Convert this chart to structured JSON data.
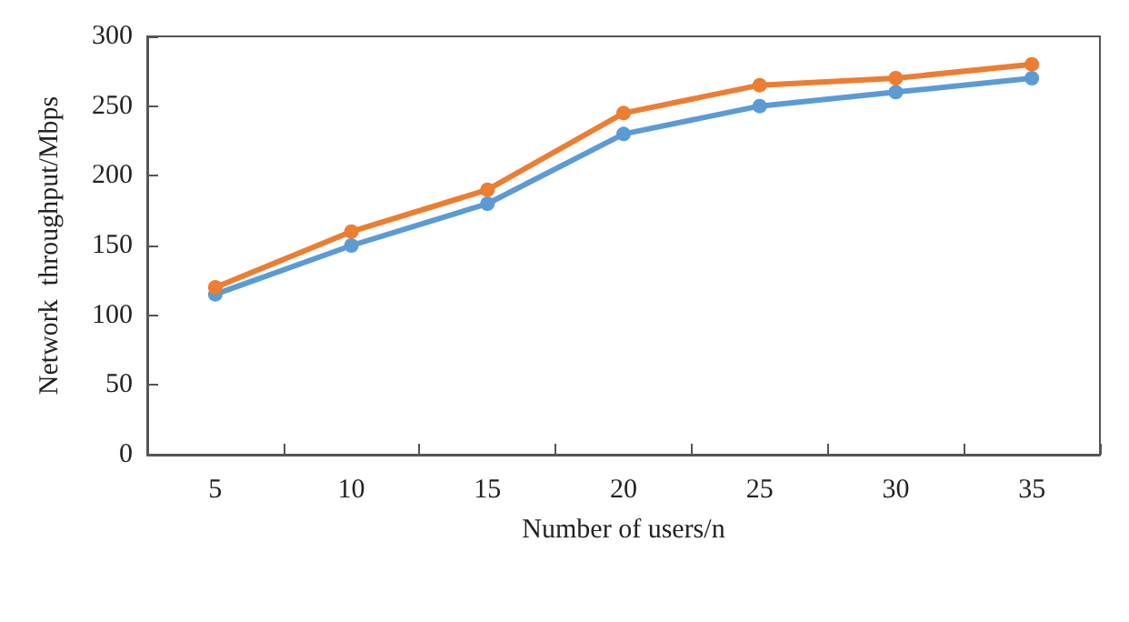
{
  "chart_data": {
    "type": "line",
    "xlabel": "Number of users/n",
    "ylabel": "Network  throughput/Mbps",
    "categories": [
      "5",
      "10",
      "15",
      "20",
      "25",
      "30",
      "35"
    ],
    "series": [
      {
        "color": "#5b9bd5",
        "values": [
          115,
          150,
          180,
          230,
          250,
          260,
          270
        ]
      },
      {
        "color": "#ed7d31",
        "values": [
          120,
          160,
          190,
          245,
          265,
          270,
          280
        ]
      }
    ],
    "ylim": [
      0,
      300
    ],
    "yticks": [
      0,
      50,
      100,
      150,
      200,
      250,
      300
    ],
    "grid": false,
    "marker": "circle",
    "line_style": "solid"
  }
}
